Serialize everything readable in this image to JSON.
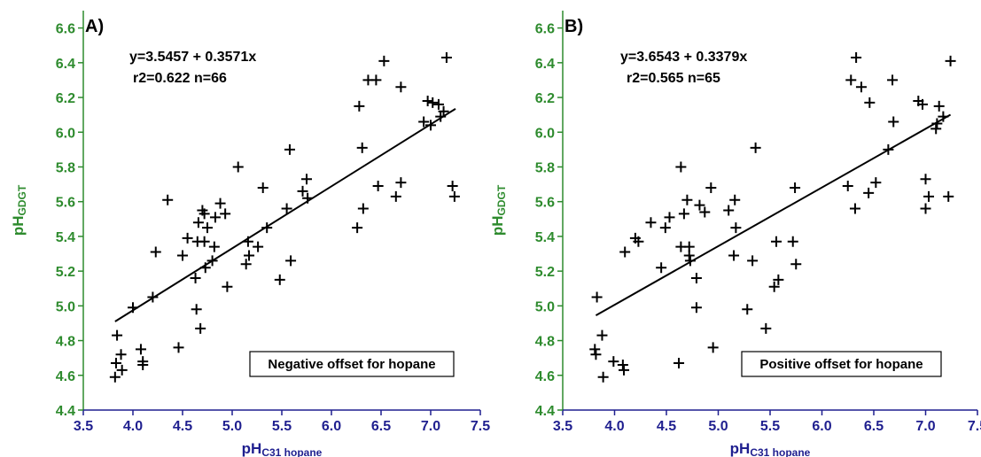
{
  "colors": {
    "x_axis": "#1f1f8f",
    "y_axis": "#2e8b2e",
    "points": "#000000",
    "fit_line": "#000000"
  },
  "chart_data": [
    {
      "type": "scatter",
      "panel_label": "A)",
      "equation": "y=3.5457 + 0.3571x",
      "stats": "r2=0.622 n=66",
      "annotation": "Negative offset for hopane",
      "xlabel_main": "pH",
      "xlabel_sub": "C31 hopane",
      "ylabel_main": "pH",
      "ylabel_sub": "GDGT",
      "xlim": [
        3.5,
        7.5
      ],
      "ylim": [
        4.4,
        6.7
      ],
      "xticks": [
        "3.5",
        "4.0",
        "4.5",
        "5.0",
        "5.5",
        "6.0",
        "6.5",
        "7.0",
        "7.5"
      ],
      "yticks": [
        "4.4",
        "4.6",
        "4.8",
        "5.0",
        "5.2",
        "5.4",
        "5.6",
        "5.8",
        "6.0",
        "6.2",
        "6.4",
        "6.6"
      ],
      "fit": {
        "intercept": 3.5457,
        "slope": 0.3571,
        "x_range": [
          3.82,
          7.25
        ]
      },
      "marker": "plus",
      "points": [
        [
          3.82,
          4.59
        ],
        [
          3.83,
          4.67
        ],
        [
          3.84,
          4.83
        ],
        [
          3.88,
          4.72
        ],
        [
          3.89,
          4.63
        ],
        [
          4.0,
          4.99
        ],
        [
          4.08,
          4.75
        ],
        [
          4.1,
          4.68
        ],
        [
          4.1,
          4.66
        ],
        [
          4.2,
          5.05
        ],
        [
          4.23,
          5.31
        ],
        [
          4.35,
          5.61
        ],
        [
          4.46,
          4.76
        ],
        [
          4.5,
          5.29
        ],
        [
          4.55,
          5.39
        ],
        [
          4.63,
          5.16
        ],
        [
          4.64,
          4.98
        ],
        [
          4.65,
          5.37
        ],
        [
          4.66,
          5.48
        ],
        [
          4.68,
          4.87
        ],
        [
          4.7,
          5.55
        ],
        [
          4.72,
          5.53
        ],
        [
          4.72,
          5.37
        ],
        [
          4.73,
          5.22
        ],
        [
          4.75,
          5.45
        ],
        [
          4.8,
          5.26
        ],
        [
          4.82,
          5.34
        ],
        [
          4.83,
          5.51
        ],
        [
          4.88,
          5.59
        ],
        [
          4.93,
          5.53
        ],
        [
          4.95,
          5.11
        ],
        [
          5.06,
          5.8
        ],
        [
          5.14,
          5.24
        ],
        [
          5.16,
          5.37
        ],
        [
          5.17,
          5.29
        ],
        [
          5.26,
          5.34
        ],
        [
          5.31,
          5.68
        ],
        [
          5.35,
          5.45
        ],
        [
          5.48,
          5.15
        ],
        [
          5.55,
          5.56
        ],
        [
          5.58,
          5.9
        ],
        [
          5.59,
          5.26
        ],
        [
          5.71,
          5.66
        ],
        [
          5.75,
          5.73
        ],
        [
          5.76,
          5.62
        ],
        [
          6.26,
          5.45
        ],
        [
          6.28,
          6.15
        ],
        [
          6.31,
          5.91
        ],
        [
          6.32,
          5.56
        ],
        [
          6.37,
          6.3
        ],
        [
          6.45,
          6.3
        ],
        [
          6.47,
          5.69
        ],
        [
          6.53,
          6.41
        ],
        [
          6.65,
          5.63
        ],
        [
          6.7,
          5.71
        ],
        [
          6.7,
          6.26
        ],
        [
          6.93,
          6.06
        ],
        [
          6.97,
          6.18
        ],
        [
          7.0,
          6.04
        ],
        [
          7.02,
          6.17
        ],
        [
          7.08,
          6.16
        ],
        [
          7.1,
          6.09
        ],
        [
          7.16,
          6.43
        ],
        [
          7.22,
          5.69
        ],
        [
          7.24,
          5.63
        ],
        [
          7.13,
          6.12
        ]
      ]
    },
    {
      "type": "scatter",
      "panel_label": "B)",
      "equation": "y=3.6543 + 0.3379x",
      "stats": "r2=0.565 n=65",
      "annotation": "Positive offset for hopane",
      "xlabel_main": "pH",
      "xlabel_sub": "C31 hopane",
      "ylabel_main": "pH",
      "ylabel_sub": "GDGT",
      "xlim": [
        3.5,
        7.5
      ],
      "ylim": [
        4.4,
        6.7
      ],
      "xticks": [
        "3.5",
        "4.0",
        "4.5",
        "5.0",
        "5.5",
        "6.0",
        "6.5",
        "7.0",
        "7.5"
      ],
      "yticks": [
        "4.4",
        "4.6",
        "4.8",
        "5.0",
        "5.2",
        "5.4",
        "5.6",
        "5.8",
        "6.0",
        "6.2",
        "6.4",
        "6.6"
      ],
      "fit": {
        "intercept": 3.6543,
        "slope": 0.3379,
        "x_range": [
          3.82,
          7.24
        ]
      },
      "marker": "plus",
      "points": [
        [
          3.81,
          4.75
        ],
        [
          3.82,
          4.72
        ],
        [
          3.83,
          5.05
        ],
        [
          3.88,
          4.83
        ],
        [
          3.89,
          4.59
        ],
        [
          3.99,
          4.68
        ],
        [
          4.08,
          4.66
        ],
        [
          4.09,
          4.63
        ],
        [
          4.1,
          5.31
        ],
        [
          4.2,
          5.39
        ],
        [
          4.23,
          5.37
        ],
        [
          4.35,
          5.48
        ],
        [
          4.45,
          5.22
        ],
        [
          4.49,
          5.45
        ],
        [
          4.53,
          5.51
        ],
        [
          4.62,
          4.67
        ],
        [
          4.64,
          5.8
        ],
        [
          4.64,
          5.34
        ],
        [
          4.67,
          5.53
        ],
        [
          4.7,
          5.61
        ],
        [
          4.72,
          5.34
        ],
        [
          4.72,
          5.29
        ],
        [
          4.73,
          5.26
        ],
        [
          4.79,
          5.16
        ],
        [
          4.79,
          4.99
        ],
        [
          4.82,
          5.58
        ],
        [
          4.87,
          5.54
        ],
        [
          4.93,
          5.68
        ],
        [
          4.95,
          4.76
        ],
        [
          5.1,
          5.55
        ],
        [
          5.15,
          5.29
        ],
        [
          5.16,
          5.61
        ],
        [
          5.17,
          5.45
        ],
        [
          5.28,
          4.98
        ],
        [
          5.33,
          5.26
        ],
        [
          5.36,
          5.91
        ],
        [
          5.46,
          4.87
        ],
        [
          5.54,
          5.11
        ],
        [
          5.56,
          5.37
        ],
        [
          5.58,
          5.15
        ],
        [
          5.72,
          5.37
        ],
        [
          5.74,
          5.68
        ],
        [
          5.75,
          5.24
        ],
        [
          6.25,
          5.69
        ],
        [
          6.28,
          6.3
        ],
        [
          6.32,
          5.56
        ],
        [
          6.33,
          6.43
        ],
        [
          6.38,
          6.26
        ],
        [
          6.45,
          5.65
        ],
        [
          6.46,
          6.17
        ],
        [
          6.52,
          5.71
        ],
        [
          6.64,
          5.9
        ],
        [
          6.68,
          6.3
        ],
        [
          6.69,
          6.06
        ],
        [
          6.93,
          6.18
        ],
        [
          6.97,
          6.16
        ],
        [
          7.0,
          5.73
        ],
        [
          7.0,
          5.56
        ],
        [
          7.03,
          5.63
        ],
        [
          7.11,
          6.05
        ],
        [
          7.13,
          6.15
        ],
        [
          7.17,
          6.09
        ],
        [
          7.22,
          5.63
        ],
        [
          7.24,
          6.41
        ],
        [
          7.1,
          6.02
        ]
      ]
    }
  ]
}
